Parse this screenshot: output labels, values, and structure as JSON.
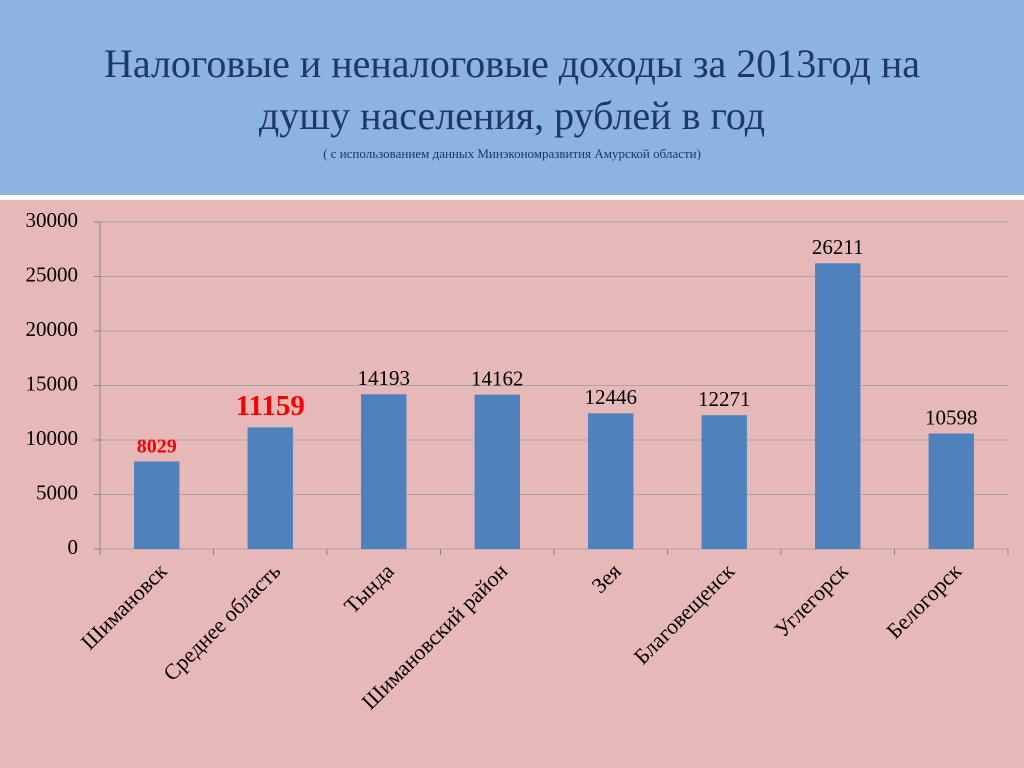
{
  "chart_data": {
    "type": "bar",
    "title": [
      "Налоговые и неналоговые доходы за 2013год на",
      "душу населения, рублей в год"
    ],
    "subtitle": "( с использованием данных Минэкономразвития Амурской области)",
    "categories": [
      "Шимановск",
      "Среднее область",
      "Тында",
      "Шимановский район",
      "Зея",
      "Благовещенск",
      "Углегорск",
      "Белогорск"
    ],
    "values": [
      8029,
      11159,
      14193,
      14162,
      12446,
      12271,
      26211,
      10598
    ],
    "color": "#4f81bd",
    "value_label_colors": [
      "#ff0000",
      "#ff0000",
      "#000000",
      "#000000",
      "#000000",
      "#000000",
      "#000000",
      "#000000"
    ],
    "ylim": [
      0,
      30000
    ],
    "yticks": [
      0,
      5000,
      10000,
      15000,
      20000,
      25000,
      30000
    ],
    "grid": true
  }
}
